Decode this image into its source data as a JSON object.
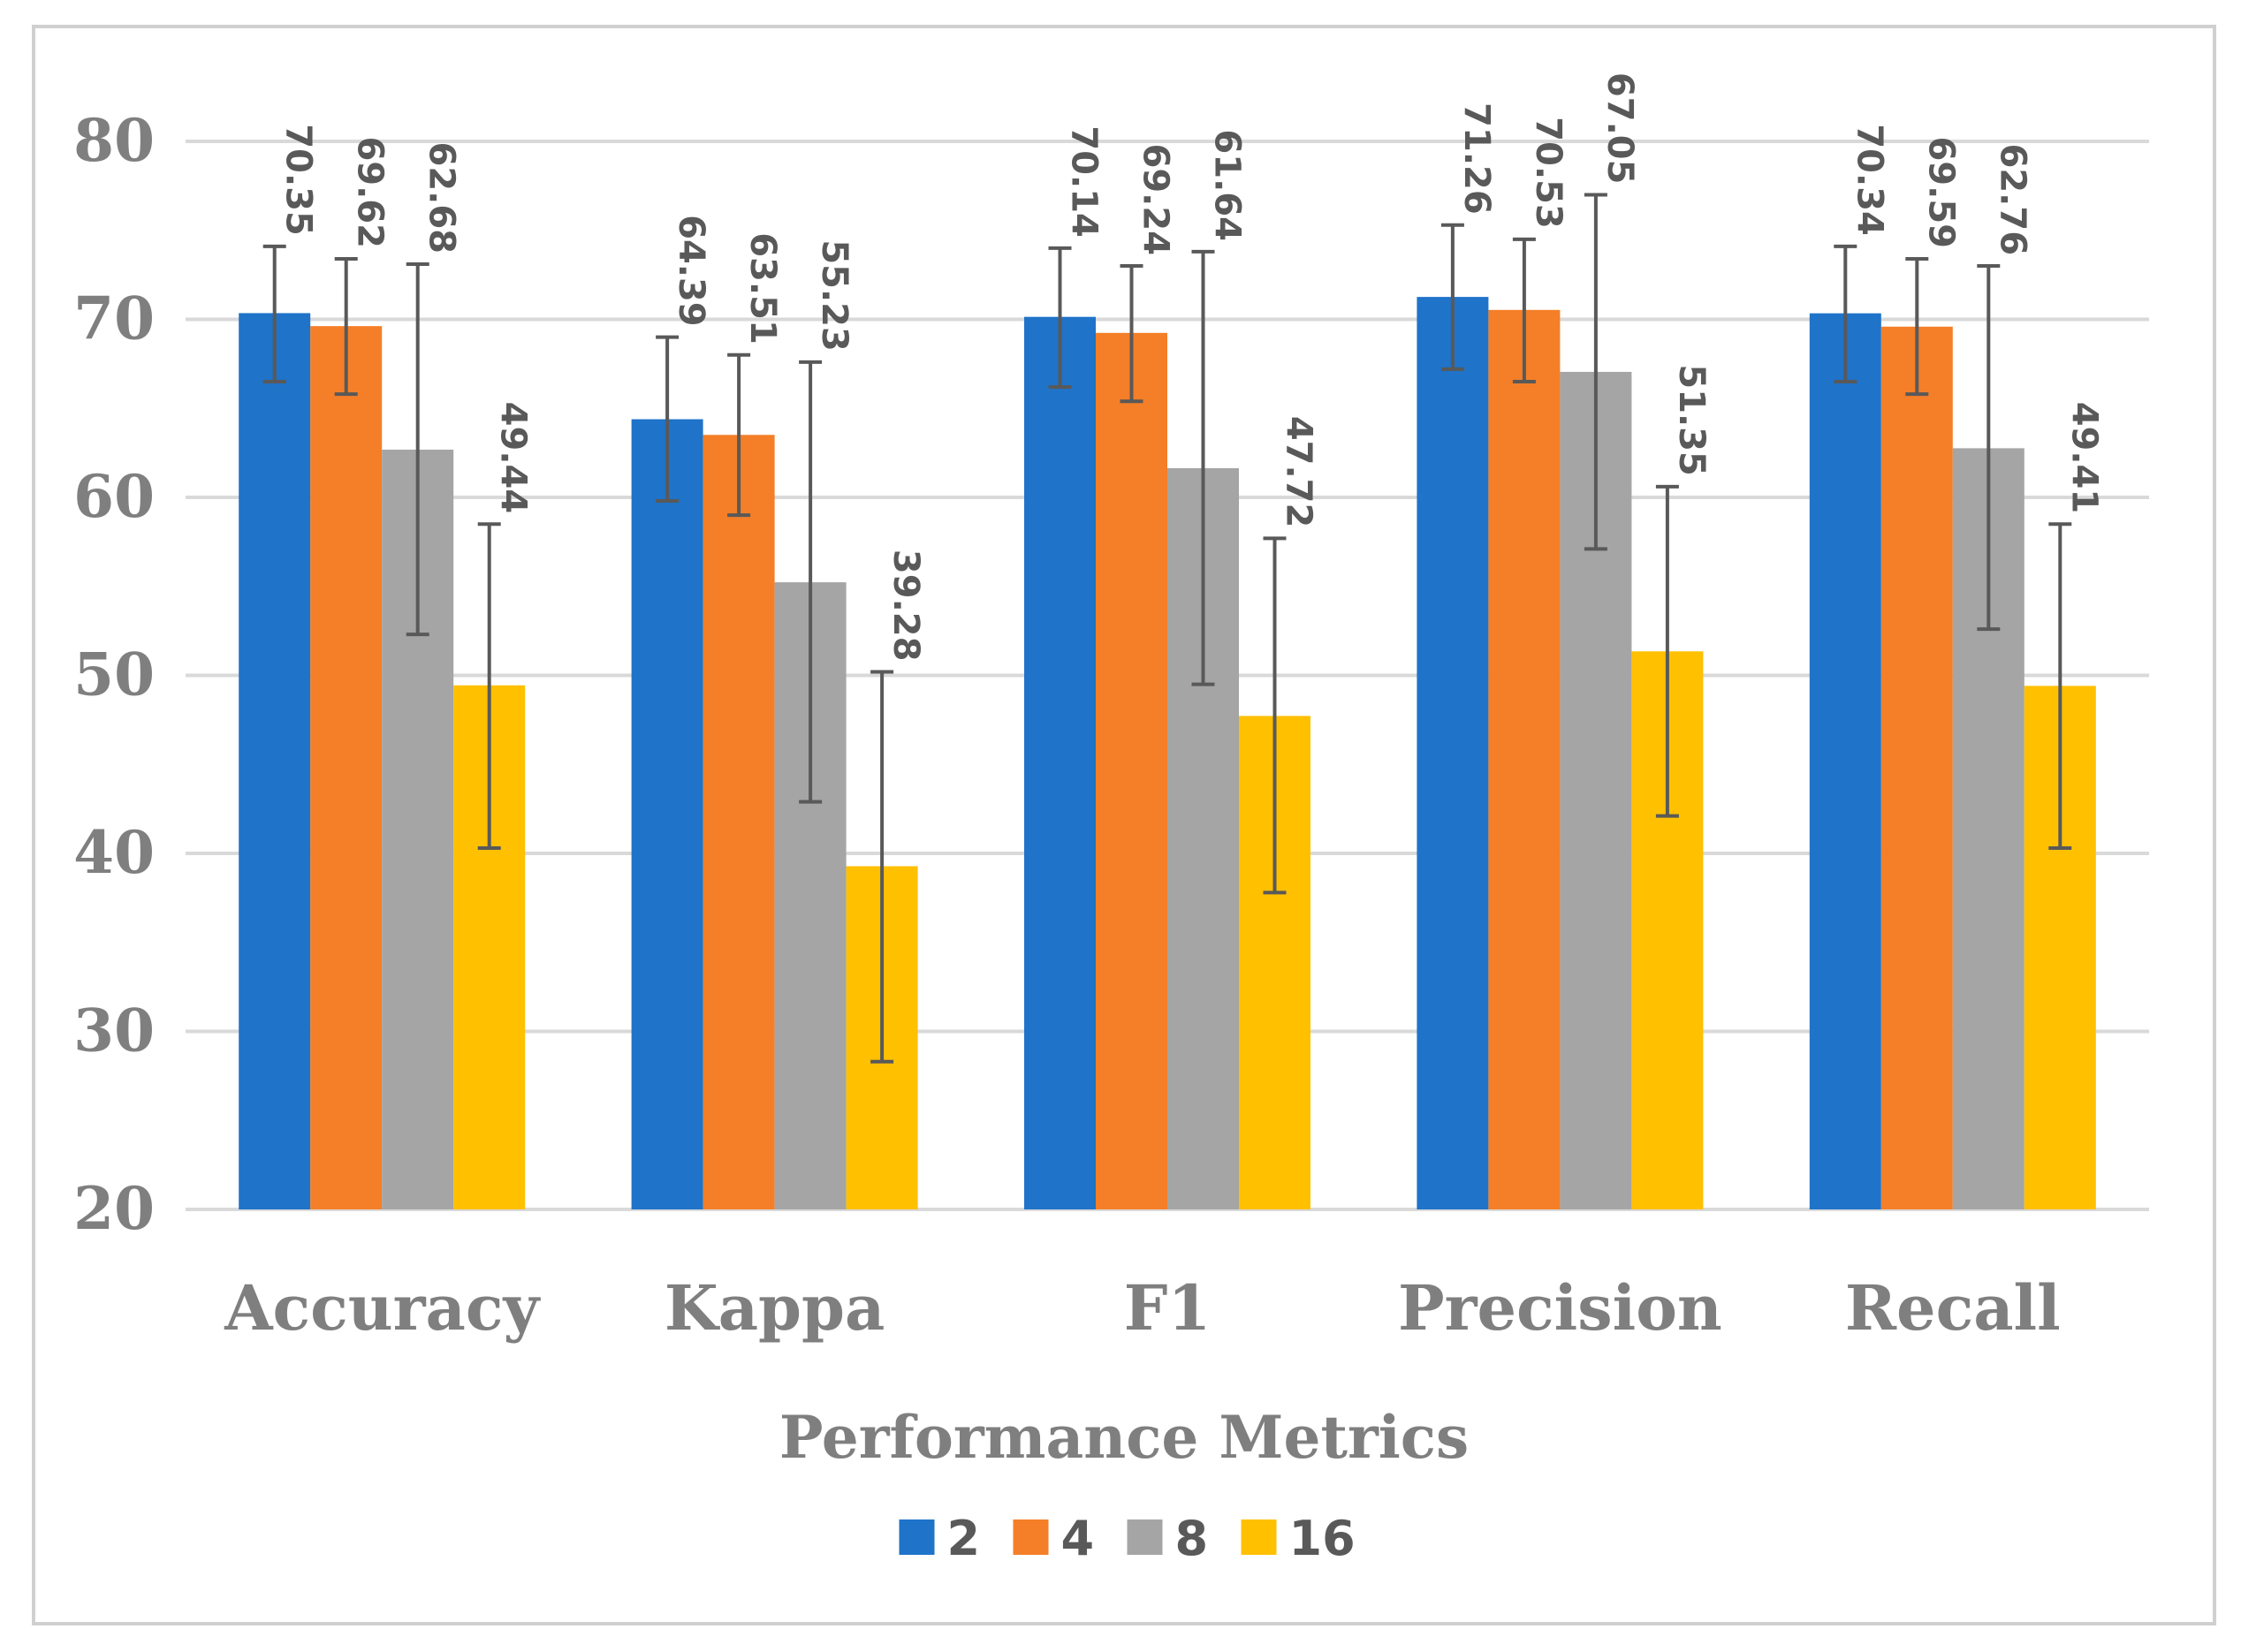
{
  "chart_data": {
    "type": "bar",
    "title": "",
    "xlabel": "Performance Metrics",
    "ylabel": "",
    "ylim": [
      20,
      80
    ],
    "yticks": [
      20,
      30,
      40,
      50,
      60,
      70,
      80
    ],
    "grid": true,
    "legend_position": "bottom",
    "categories": [
      "Accuracy",
      "Kappa",
      "F1",
      "Precision",
      "Recall"
    ],
    "series": [
      {
        "name": "2",
        "color": "#1f73c9",
        "values": [
          70.35,
          64.39,
          70.14,
          71.26,
          70.34
        ],
        "error_low": [
          66.5,
          59.8,
          66.2,
          67.2,
          66.5
        ],
        "error_high": [
          74.1,
          69.0,
          74.0,
          75.3,
          74.1
        ],
        "labels": [
          "70.35",
          "64.39",
          "70.14",
          "71.26",
          "70.34"
        ]
      },
      {
        "name": "4",
        "color": "#f47f28",
        "values": [
          69.62,
          63.51,
          69.24,
          70.53,
          69.59
        ],
        "error_low": [
          65.8,
          59.0,
          65.4,
          66.5,
          65.8
        ],
        "error_high": [
          73.4,
          68.0,
          73.0,
          74.5,
          73.4
        ],
        "labels": [
          "69.62",
          "63.51",
          "69.24",
          "70.53",
          "69.59"
        ]
      },
      {
        "name": "8",
        "color": "#a5a5a5",
        "values": [
          62.68,
          55.23,
          61.64,
          67.05,
          62.76
        ],
        "error_low": [
          52.3,
          42.9,
          49.5,
          57.1,
          52.6
        ],
        "error_high": [
          73.1,
          67.6,
          73.8,
          77.0,
          73.0
        ],
        "labels": [
          "62.68",
          "55.23",
          "61.64",
          "67.05",
          "62.76"
        ]
      },
      {
        "name": "16",
        "color": "#ffc000",
        "values": [
          49.44,
          39.28,
          47.72,
          51.35,
          49.41
        ],
        "error_low": [
          40.3,
          28.3,
          37.8,
          42.1,
          40.3
        ],
        "error_high": [
          58.5,
          50.2,
          57.7,
          60.6,
          58.5
        ],
        "labels": [
          "49.44",
          "39.28",
          "47.72",
          "51.35",
          "49.41"
        ]
      }
    ]
  }
}
